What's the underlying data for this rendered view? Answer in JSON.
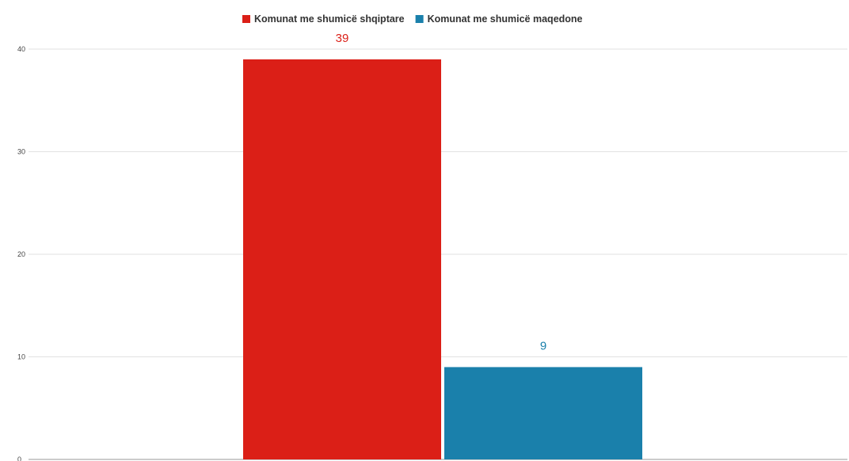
{
  "chart_data": {
    "type": "bar",
    "title": "",
    "xlabel": "",
    "ylabel": "",
    "ylim": [
      0,
      40
    ],
    "yticks": [
      0,
      10,
      20,
      30,
      40
    ],
    "grid": true,
    "legend_position": "top-center",
    "series": [
      {
        "name": "Komunat me shumicë shqiptare",
        "values": [
          39
        ],
        "color": "#db1f17"
      },
      {
        "name": "Komunat me shumicë maqedone",
        "values": [
          9
        ],
        "color": "#1a80ab"
      }
    ],
    "data_labels": [
      "39",
      "9"
    ]
  }
}
